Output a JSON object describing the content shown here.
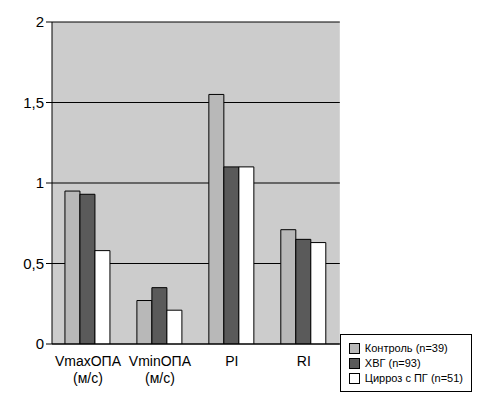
{
  "chart_data": {
    "type": "bar",
    "categories": [
      "VmaxОПА\n(м/с)",
      "VminОПА\n(м/с)",
      "PI",
      "RI"
    ],
    "series": [
      {
        "name": "Контроль (n=39)",
        "color": "#b8b8b8",
        "values": [
          0.95,
          0.27,
          1.55,
          0.71
        ]
      },
      {
        "name": "ХВГ (n=93)",
        "color": "#5a5a5a",
        "values": [
          0.93,
          0.35,
          1.1,
          0.65
        ]
      },
      {
        "name": "Цирроз с ПГ (n=51)",
        "color": "#ffffff",
        "values": [
          0.58,
          0.21,
          1.1,
          0.63
        ]
      }
    ],
    "ylim": [
      0,
      2
    ],
    "yticks": [
      0,
      {
        "value": 0.5,
        "label": "0,5"
      },
      1,
      {
        "value": 1.5,
        "label": "1,5"
      },
      2
    ],
    "grid": true,
    "legend": "bottom-right"
  }
}
